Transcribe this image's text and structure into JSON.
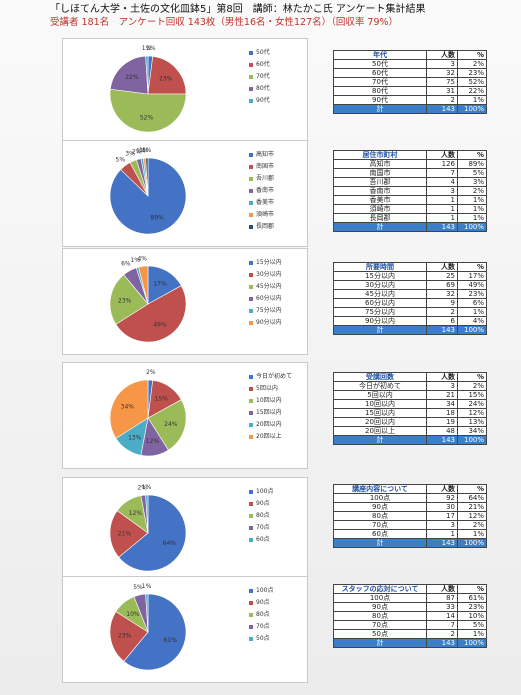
{
  "header": {
    "title": "「しほてん大学・土佐の文化皿鉢5」第8回　講師：林たかこ氏 アンケート集計結果",
    "subtitle": "受講者 181名　アンケート回収 143枚（男性16名・女性127名）（回収率 79%）"
  },
  "sections": [
    {
      "category": "年代",
      "count_header": "人数",
      "pct_header": "%",
      "rows": [
        {
          "label": "50代",
          "count": "3",
          "pct": "2%"
        },
        {
          "label": "60代",
          "count": "32",
          "pct": "23%"
        },
        {
          "label": "70代",
          "count": "75",
          "pct": "52%"
        },
        {
          "label": "80代",
          "count": "31",
          "pct": "22%"
        },
        {
          "label": "90代",
          "count": "2",
          "pct": "1%"
        }
      ],
      "total": {
        "label": "計",
        "count": "143",
        "pct": "100%"
      },
      "legend": [
        "50代",
        "60代",
        "70代",
        "80代",
        "90代"
      ],
      "slice_labels": [
        "2%",
        "23%",
        "52%",
        "22%",
        "1%"
      ]
    },
    {
      "category": "居住市町村",
      "count_header": "人数",
      "pct_header": "%",
      "rows": [
        {
          "label": "高知市",
          "count": "126",
          "pct": "89%"
        },
        {
          "label": "南国市",
          "count": "7",
          "pct": "5%"
        },
        {
          "label": "吾川郡",
          "count": "4",
          "pct": "3%"
        },
        {
          "label": "香南市",
          "count": "3",
          "pct": "2%"
        },
        {
          "label": "香美市",
          "count": "1",
          "pct": "1%"
        },
        {
          "label": "須崎市",
          "count": "1",
          "pct": "1%"
        },
        {
          "label": "長岡郡",
          "count": "1",
          "pct": "1%"
        }
      ],
      "total": {
        "label": "計",
        "count": "143",
        "pct": "100%"
      },
      "legend": [
        "高知市",
        "南国市",
        "吾川郡",
        "香南市",
        "香美市",
        "須崎市",
        "長岡郡"
      ],
      "slice_labels": [
        "89%",
        "5%",
        "3%",
        "2%",
        "1%",
        "1%",
        "1%"
      ]
    },
    {
      "category": "所要時間",
      "count_header": "人数",
      "pct_header": "%",
      "rows": [
        {
          "label": "15分以内",
          "count": "25",
          "pct": "17%"
        },
        {
          "label": "30分以内",
          "count": "69",
          "pct": "49%"
        },
        {
          "label": "45分以内",
          "count": "32",
          "pct": "23%"
        },
        {
          "label": "60分以内",
          "count": "9",
          "pct": "6%"
        },
        {
          "label": "75分以内",
          "count": "2",
          "pct": "1%"
        },
        {
          "label": "90分以内",
          "count": "6",
          "pct": "4%"
        }
      ],
      "total": {
        "label": "計",
        "count": "143",
        "pct": "100%"
      },
      "legend": [
        "15分以内",
        "30分以内",
        "45分以内",
        "60分以内",
        "75分以内",
        "90分以内"
      ],
      "slice_labels": [
        "17%",
        "49%",
        "23%",
        "6%",
        "1%",
        "4%"
      ]
    },
    {
      "category": "受講回数",
      "count_header": "人数",
      "pct_header": "%",
      "rows": [
        {
          "label": "今日が初めて",
          "count": "3",
          "pct": "2%"
        },
        {
          "label": "5回以内",
          "count": "21",
          "pct": "15%"
        },
        {
          "label": "10回以内",
          "count": "34",
          "pct": "24%"
        },
        {
          "label": "15回以内",
          "count": "18",
          "pct": "12%"
        },
        {
          "label": "20回以内",
          "count": "19",
          "pct": "13%"
        },
        {
          "label": "20回以上",
          "count": "48",
          "pct": "34%"
        }
      ],
      "total": {
        "label": "計",
        "count": "143",
        "pct": "100%"
      },
      "legend": [
        "今日が初めて",
        "5回以内",
        "10回以内",
        "15回以内",
        "20回以内",
        "20回以上"
      ],
      "slice_labels": [
        "2%",
        "15%",
        "24%",
        "12%",
        "13%",
        "34%"
      ]
    },
    {
      "category": "講座内容について",
      "count_header": "人数",
      "pct_header": "%",
      "rows": [
        {
          "label": "100点",
          "count": "92",
          "pct": "64%"
        },
        {
          "label": "90点",
          "count": "30",
          "pct": "21%"
        },
        {
          "label": "80点",
          "count": "17",
          "pct": "12%"
        },
        {
          "label": "70点",
          "count": "3",
          "pct": "2%"
        },
        {
          "label": "60点",
          "count": "1",
          "pct": "1%"
        }
      ],
      "total": {
        "label": "計",
        "count": "143",
        "pct": "100%"
      },
      "legend": [
        "100点",
        "90点",
        "80点",
        "70点",
        "60点"
      ],
      "slice_labels": [
        "64%",
        "21%",
        "12%",
        "2%",
        "1%"
      ]
    },
    {
      "category": "スタッフの応対について",
      "count_header": "人数",
      "pct_header": "%",
      "rows": [
        {
          "label": "100点",
          "count": "87",
          "pct": "61%"
        },
        {
          "label": "90点",
          "count": "33",
          "pct": "23%"
        },
        {
          "label": "80点",
          "count": "14",
          "pct": "10%"
        },
        {
          "label": "70点",
          "count": "7",
          "pct": "5%"
        },
        {
          "label": "50点",
          "count": "2",
          "pct": "1%"
        }
      ],
      "total": {
        "label": "計",
        "count": "143",
        "pct": "100%"
      },
      "legend": [
        "100点",
        "90点",
        "80点",
        "70点",
        "50点"
      ],
      "slice_labels": [
        "61%",
        "23%",
        "10%",
        "5%",
        "1%"
      ]
    }
  ],
  "chart_data": [
    {
      "type": "pie",
      "categories": [
        "50代",
        "60代",
        "70代",
        "80代",
        "90代"
      ],
      "values": [
        2,
        23,
        52,
        22,
        1
      ]
    },
    {
      "type": "pie",
      "categories": [
        "高知市",
        "南国市",
        "吾川郡",
        "香南市",
        "香美市",
        "須崎市",
        "長岡郡"
      ],
      "values": [
        89,
        5,
        3,
        2,
        1,
        1,
        1
      ]
    },
    {
      "type": "pie",
      "categories": [
        "15分以内",
        "30分以内",
        "45分以内",
        "60分以内",
        "75分以内",
        "90分以内"
      ],
      "values": [
        17,
        49,
        23,
        6,
        1,
        4
      ]
    },
    {
      "type": "pie",
      "categories": [
        "今日が初めて",
        "5回以内",
        "10回以内",
        "15回以内",
        "20回以内",
        "20回以上"
      ],
      "values": [
        2,
        15,
        24,
        12,
        13,
        34
      ]
    },
    {
      "type": "pie",
      "categories": [
        "100点",
        "90点",
        "80点",
        "70点",
        "60点"
      ],
      "values": [
        64,
        21,
        12,
        2,
        1
      ]
    },
    {
      "type": "pie",
      "categories": [
        "100点",
        "90点",
        "80点",
        "70点",
        "50点"
      ],
      "values": [
        61,
        23,
        10,
        5,
        1
      ]
    }
  ],
  "colors": [
    "#4472c4",
    "#c0504d",
    "#9bbb59",
    "#8064a2",
    "#4bacc6",
    "#f79646",
    "#2c4d75"
  ]
}
